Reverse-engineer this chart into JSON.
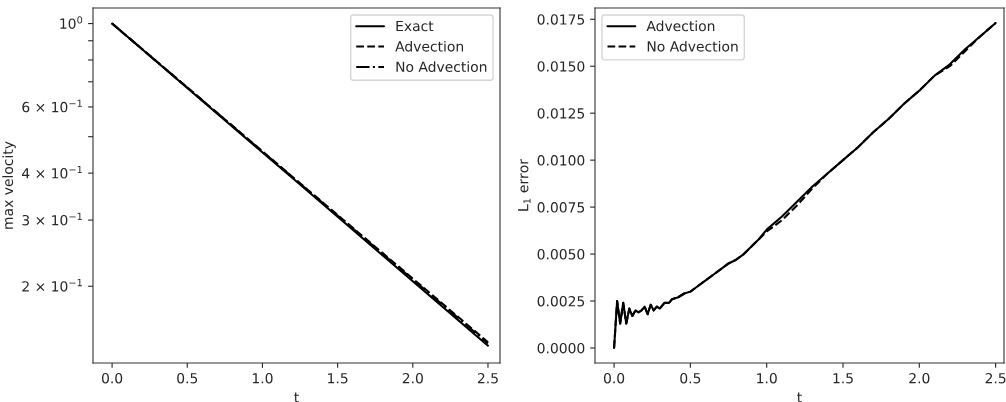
{
  "chart_data": [
    {
      "type": "line",
      "xlabel": "t",
      "ylabel": "max velocity",
      "log": "y",
      "legend": "top right",
      "xlim": [
        -0.127,
        2.58
      ],
      "xticks": [
        {
          "value": 0,
          "label": "0.0"
        },
        0.5,
        {
          "value": 1,
          "label": "1.0"
        },
        1.5,
        {
          "value": 2,
          "label": "2.0"
        },
        2.5
      ],
      "ylim": [
        0.125,
        1.1
      ],
      "yticks": [
        {
          "value": 1,
          "label": "10$^{0}$"
        },
        {
          "value": 0.6,
          "label": "6 × 10$^{−1}$"
        },
        {
          "value": 0.4,
          "label": "4 × 10$^{−1}$"
        },
        {
          "value": 0.3,
          "label": "3 × 10$^{−1}$"
        },
        {
          "value": 0.2,
          "label": "2 × 10$^{−1}$"
        },
        {
          "value": 0.9,
          "label": null
        },
        {
          "value": 0.8,
          "label": null
        },
        {
          "value": 0.7,
          "label": null
        },
        {
          "value": 0.5,
          "label": null
        }
      ],
      "series": [
        {
          "name": "Exact",
          "color": "#000000",
          "line_style": "solid",
          "x": [
            0,
            1.25,
            2.5
          ],
          "values": [
            1.0,
            0.373,
            0.139
          ]
        },
        {
          "name": "Advection",
          "color": "#000000",
          "line_style": "dashed",
          "x": [
            0,
            1.25,
            2.5
          ],
          "values": [
            1.0,
            0.376,
            0.142
          ]
        },
        {
          "name": "No Advection",
          "color": "#000000",
          "line_style": "dashdot",
          "x": [
            0,
            1.25,
            2.5
          ],
          "values": [
            1.0,
            0.375,
            0.141
          ]
        }
      ]
    },
    {
      "type": "line",
      "xlabel": "t",
      "ylabel": "L$_{1}$ error",
      "legend": "top left",
      "xlim": [
        -0.125,
        2.555
      ],
      "xticks": [
        {
          "value": 0,
          "label": "0.0"
        },
        0.5,
        {
          "value": 1,
          "label": "1.0"
        },
        1.5,
        {
          "value": 2,
          "label": "2.0"
        },
        2.5
      ],
      "ylim": [
        -0.0008,
        0.0181
      ],
      "yticks": [
        {
          "value": 0,
          "label": "0.0000"
        },
        {
          "value": 0.0025,
          "label": "0.0025"
        },
        {
          "value": 0.005,
          "label": "0.0050"
        },
        {
          "value": 0.0075,
          "label": "0.0075"
        },
        {
          "value": 0.01,
          "label": "0.0100"
        },
        {
          "value": 0.0125,
          "label": "0.0125"
        },
        {
          "value": 0.015,
          "label": "0.0150"
        },
        {
          "value": 0.0175,
          "label": "0.0175"
        }
      ],
      "series": [
        {
          "name": "Advection",
          "color": "#000000",
          "line_style": "solid",
          "x": [
            0,
            0.02,
            0.04,
            0.06,
            0.08,
            0.1,
            0.12,
            0.14,
            0.16,
            0.18,
            0.2,
            0.22,
            0.24,
            0.26,
            0.28,
            0.3,
            0.33,
            0.36,
            0.38,
            0.42,
            0.46,
            0.5,
            0.55,
            0.6,
            0.65,
            0.7,
            0.75,
            0.8,
            0.85,
            0.9,
            0.95,
            1.0,
            1.1,
            1.2,
            1.3,
            1.4,
            1.5,
            1.6,
            1.7,
            1.8,
            1.9,
            2.0,
            2.1,
            2.2,
            2.3,
            2.4,
            2.5
          ],
          "values": [
            0,
            0.0025,
            0.0013,
            0.0024,
            0.0013,
            0.0021,
            0.0017,
            0.002,
            0.0019,
            0.002,
            0.0022,
            0.0018,
            0.0023,
            0.002,
            0.0022,
            0.0021,
            0.0024,
            0.0024,
            0.0026,
            0.0027,
            0.0029,
            0.003,
            0.0033,
            0.0036,
            0.0039,
            0.0042,
            0.0045,
            0.0047,
            0.005,
            0.0054,
            0.0058,
            0.0063,
            0.007,
            0.0078,
            0.0086,
            0.0093,
            0.01,
            0.0107,
            0.0115,
            0.0122,
            0.013,
            0.0137,
            0.0145,
            0.0151,
            0.0159,
            0.0166,
            0.0173
          ]
        },
        {
          "name": "No Advection",
          "color": "#000000",
          "line_style": "dashed",
          "x": [
            0,
            0.02,
            0.04,
            0.06,
            0.08,
            0.1,
            0.12,
            0.14,
            0.16,
            0.18,
            0.2,
            0.22,
            0.24,
            0.26,
            0.28,
            0.3,
            0.33,
            0.36,
            0.38,
            0.42,
            0.46,
            0.5,
            0.55,
            0.6,
            0.65,
            0.7,
            0.75,
            0.8,
            0.85,
            0.9,
            0.95,
            1.0,
            1.1,
            1.2,
            1.3,
            1.4,
            1.5,
            1.6,
            1.7,
            1.8,
            1.9,
            2.0,
            2.1,
            2.2,
            2.3,
            2.4,
            2.5
          ],
          "values": [
            0,
            0.0025,
            0.0013,
            0.0024,
            0.0013,
            0.0021,
            0.0017,
            0.002,
            0.0019,
            0.002,
            0.0022,
            0.0018,
            0.0023,
            0.002,
            0.0022,
            0.0021,
            0.0024,
            0.0024,
            0.0026,
            0.0027,
            0.0029,
            0.003,
            0.0033,
            0.0036,
            0.0039,
            0.0042,
            0.0045,
            0.0047,
            0.005,
            0.0054,
            0.0058,
            0.0062,
            0.0068,
            0.0076,
            0.0085,
            0.0093,
            0.01,
            0.0107,
            0.0115,
            0.0122,
            0.013,
            0.0137,
            0.0145,
            0.015,
            0.0158,
            0.0166,
            0.0173
          ]
        }
      ]
    }
  ]
}
